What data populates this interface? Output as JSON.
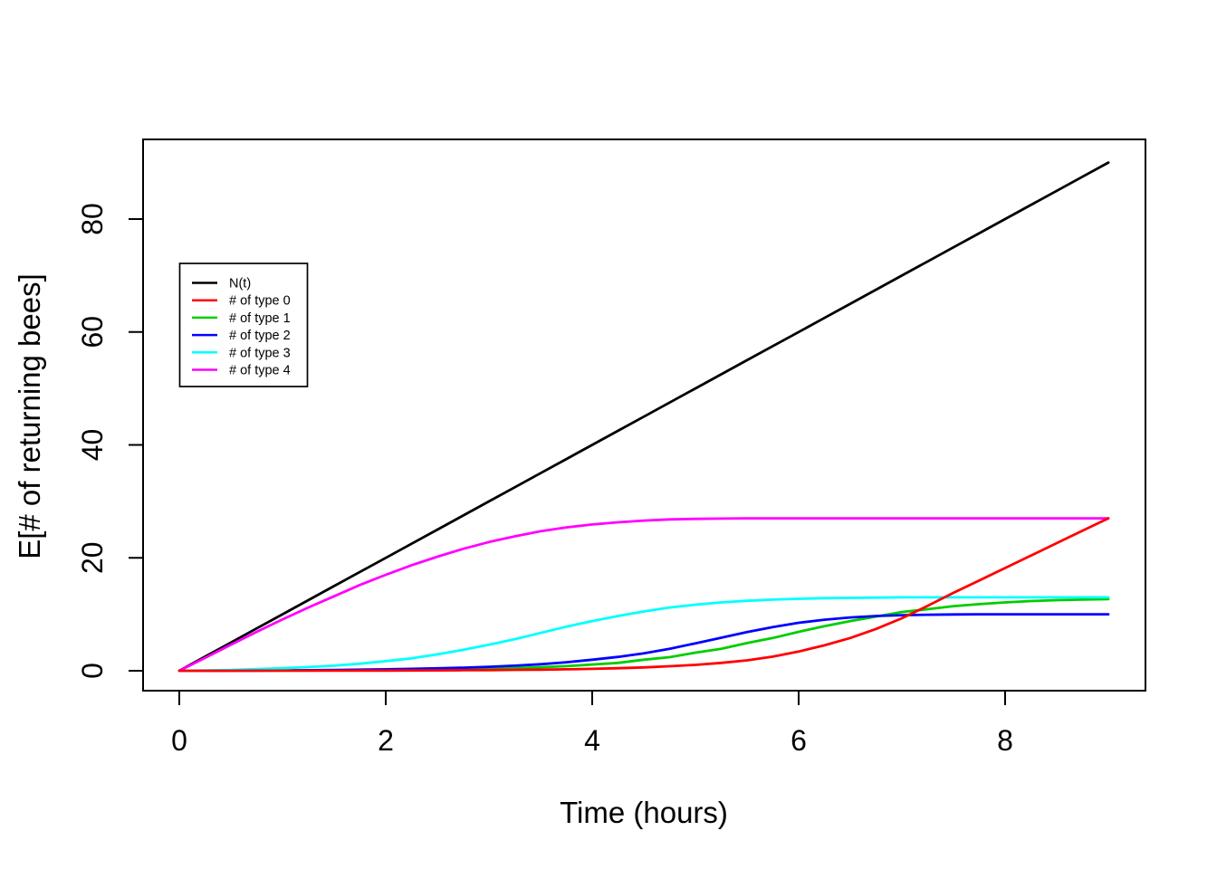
{
  "figure": {
    "background": "#FFFFFF",
    "axis_color": "#000000"
  },
  "chart_data": {
    "type": "line",
    "title": "",
    "xlabel": "Time (hours)",
    "ylabel": "E[# of returning bees]",
    "xlim": [
      0,
      9
    ],
    "ylim": [
      0,
      90
    ],
    "xticks": [
      0,
      2,
      4,
      6,
      8
    ],
    "yticks": [
      0,
      20,
      40,
      60,
      80
    ],
    "grid": false,
    "legend_position": "top-left-inset",
    "legend_entries": [
      "N(t)",
      "# of type 0",
      "# of type 1",
      "# of type 2",
      "# of type 3",
      "# of type 4"
    ],
    "x": [
      0,
      0.25,
      0.5,
      0.75,
      1,
      1.25,
      1.5,
      1.75,
      2,
      2.25,
      2.5,
      2.75,
      3,
      3.25,
      3.5,
      3.75,
      4,
      4.25,
      4.5,
      4.75,
      5,
      5.25,
      5.5,
      5.75,
      6,
      6.25,
      6.5,
      6.75,
      7,
      7.25,
      7.5,
      7.75,
      8,
      8.25,
      8.5,
      8.75,
      9
    ],
    "series": [
      {
        "name": "N(t)",
        "color": "#000000",
        "values": [
          0,
          2.5,
          5,
          7.5,
          10,
          12.5,
          15,
          17.5,
          20,
          22.5,
          25,
          27.5,
          30,
          32.5,
          35,
          37.5,
          40,
          42.5,
          45,
          47.5,
          50,
          52.5,
          55,
          57.5,
          60,
          62.5,
          65,
          67.5,
          70,
          72.5,
          75,
          77.5,
          80,
          82.5,
          85,
          87.5,
          90
        ]
      },
      {
        "name": "# of type 0",
        "color": "#FF0000",
        "values": [
          0,
          0,
          0,
          0.01,
          0.01,
          0.02,
          0.02,
          0.03,
          0.04,
          0.05,
          0.07,
          0.09,
          0.12,
          0.16,
          0.2,
          0.26,
          0.34,
          0.45,
          0.6,
          0.8,
          1.05,
          1.4,
          1.85,
          2.5,
          3.4,
          4.5,
          5.8,
          7.4,
          9.3,
          11.5,
          13.8,
          16,
          18.2,
          20.4,
          22.6,
          24.8,
          27
        ]
      },
      {
        "name": "# of type 1",
        "color": "#00CD00",
        "values": [
          0,
          0,
          0.01,
          0.02,
          0.03,
          0.05,
          0.07,
          0.1,
          0.13,
          0.17,
          0.22,
          0.28,
          0.35,
          0.48,
          0.62,
          0.82,
          1.1,
          1.4,
          1.95,
          2.4,
          3.2,
          3.9,
          4.9,
          5.8,
          6.9,
          7.9,
          8.8,
          9.6,
          10.4,
          10.9,
          11.45,
          11.8,
          12.1,
          12.35,
          12.5,
          12.6,
          12.7
        ]
      },
      {
        "name": "# of type 2",
        "color": "#0000FF",
        "values": [
          0,
          0,
          0.02,
          0.04,
          0.07,
          0.1,
          0.14,
          0.19,
          0.25,
          0.33,
          0.43,
          0.55,
          0.7,
          0.9,
          1.15,
          1.5,
          1.95,
          2.45,
          3.1,
          3.9,
          4.85,
          5.85,
          6.85,
          7.75,
          8.5,
          9.05,
          9.45,
          9.7,
          9.85,
          9.93,
          9.97,
          10,
          10,
          10,
          10,
          10,
          10
        ]
      },
      {
        "name": "# of type 3",
        "color": "#00FFFF",
        "values": [
          0,
          0.05,
          0.15,
          0.3,
          0.45,
          0.65,
          0.9,
          1.25,
          1.7,
          2.2,
          2.9,
          3.7,
          4.6,
          5.6,
          6.7,
          7.8,
          8.8,
          9.7,
          10.5,
          11.2,
          11.7,
          12.1,
          12.4,
          12.6,
          12.75,
          12.85,
          12.9,
          12.95,
          13,
          13,
          13,
          13,
          13,
          13,
          13,
          13,
          13
        ]
      },
      {
        "name": "# of type 4",
        "color": "#FF00FF",
        "values": [
          0,
          2.3,
          4.6,
          6.9,
          9.1,
          11.2,
          13.2,
          15.2,
          17,
          18.7,
          20.2,
          21.6,
          22.8,
          23.8,
          24.7,
          25.4,
          25.9,
          26.3,
          26.6,
          26.8,
          26.9,
          26.95,
          27,
          27,
          27,
          27,
          27,
          27,
          27,
          27,
          27,
          27,
          27,
          27,
          27,
          27,
          27
        ]
      }
    ]
  }
}
